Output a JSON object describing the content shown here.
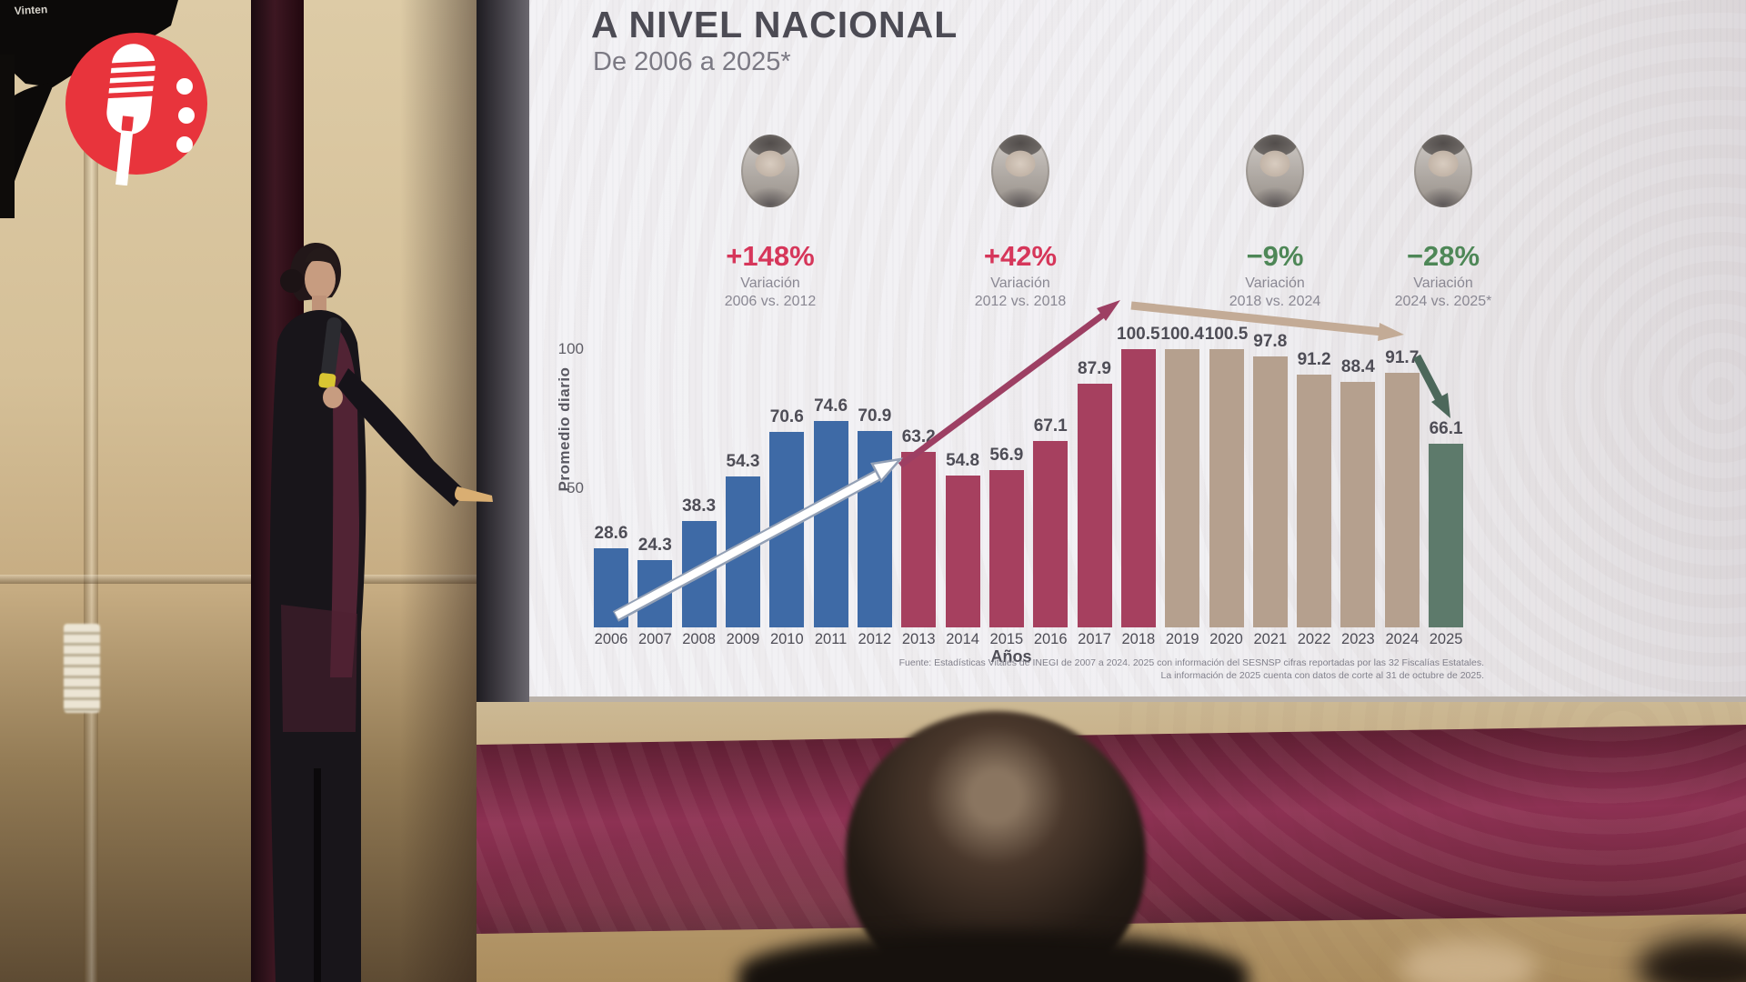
{
  "scene": {
    "camera_brand": "Vinten",
    "logo": {
      "name": "press-conference-microphone-logo",
      "bg_color": "#e8343c",
      "glyph_color": "#ffffff"
    }
  },
  "slide": {
    "title": "A NIVEL NACIONAL",
    "subtitle": "De 2006 a 2025*",
    "periods": [
      {
        "pct": "+148%",
        "line1": "Variación",
        "line2": "2006 vs. 2012",
        "color": "#d6365a",
        "portrait": "president-portrait-2006-2012"
      },
      {
        "pct": "+42%",
        "line1": "Variación",
        "line2": "2012 vs. 2018",
        "color": "#d6365a",
        "portrait": "president-portrait-2012-2018"
      },
      {
        "pct": "−9%",
        "line1": "Variación",
        "line2": "2018 vs. 2024",
        "color": "#4e8757",
        "portrait": "president-portrait-2018-2024"
      },
      {
        "pct": "−28%",
        "line1": "Variación",
        "line2": "2024 vs. 2025*",
        "color": "#4e8757",
        "portrait": "president-portrait-2024-2025"
      }
    ],
    "source_line1": "Fuente: Estadísticas Vitales de INEGI de 2007 a 2024. 2025 con información del SESNSP cifras reportadas por las 32 Fiscalías Estatales.",
    "source_line2": "La información de 2025 cuenta con datos de corte al 31 de octubre de 2025."
  },
  "chart_data": {
    "type": "bar",
    "title": "A NIVEL NACIONAL",
    "subtitle": "De 2006 a 2025*",
    "xlabel": "Años",
    "ylabel": "Promedio diario",
    "yticks": [
      50,
      100
    ],
    "ylim": [
      0,
      110
    ],
    "grid": false,
    "legend": false,
    "categories": [
      "2006",
      "2007",
      "2008",
      "2009",
      "2010",
      "2011",
      "2012",
      "2013",
      "2014",
      "2015",
      "2016",
      "2017",
      "2018",
      "2019",
      "2020",
      "2021",
      "2022",
      "2023",
      "2024",
      "2025"
    ],
    "values": [
      28.6,
      24.3,
      38.3,
      54.3,
      70.6,
      74.6,
      70.9,
      63.2,
      54.8,
      56.9,
      67.1,
      87.9,
      100.5,
      100.4,
      100.5,
      97.8,
      91.2,
      88.4,
      91.7,
      66.1
    ],
    "bar_colors": [
      "#3e6aa6",
      "#3e6aa6",
      "#3e6aa6",
      "#3e6aa6",
      "#3e6aa6",
      "#3e6aa6",
      "#3e6aa6",
      "#a6405f",
      "#a6405f",
      "#a6405f",
      "#a6405f",
      "#a6405f",
      "#a6405f",
      "#b5a08e",
      "#b5a08e",
      "#b5a08e",
      "#b5a08e",
      "#b5a08e",
      "#b5a08e",
      "#5d7a6b"
    ],
    "annotations": [
      {
        "text": "+148% Variación 2006 vs. 2012",
        "color": "#d6365a",
        "arrow": "white rising 2006→2012"
      },
      {
        "text": "+42% Variación 2012 vs. 2018",
        "color": "#d6365a",
        "arrow": "crimson rising 2012→2018"
      },
      {
        "text": "−9% Variación 2018 vs. 2024",
        "color": "#4e8757",
        "arrow": "tan falling 2018→2024"
      },
      {
        "text": "−28% Variación 2024 vs. 2025*",
        "color": "#4e8757",
        "arrow": "green falling 2024→2025"
      }
    ]
  }
}
